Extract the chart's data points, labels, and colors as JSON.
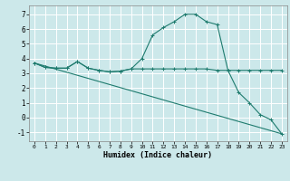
{
  "xlabel": "Humidex (Indice chaleur)",
  "bg_color": "#cce8ea",
  "line_color": "#1e7b6e",
  "grid_color": "#ffffff",
  "xlim": [
    -0.5,
    23.5
  ],
  "ylim": [
    -1.6,
    7.6
  ],
  "yticks": [
    -1,
    0,
    1,
    2,
    3,
    4,
    5,
    6,
    7
  ],
  "xticks": [
    0,
    1,
    2,
    3,
    4,
    5,
    6,
    7,
    8,
    9,
    10,
    11,
    12,
    13,
    14,
    15,
    16,
    17,
    18,
    19,
    20,
    21,
    22,
    23
  ],
  "series1_x": [
    0,
    1,
    2,
    3,
    4,
    5,
    6,
    7,
    8,
    9,
    10,
    11,
    12,
    13,
    14,
    15,
    16,
    17,
    18,
    19,
    20,
    21,
    22,
    23
  ],
  "series1_y": [
    3.7,
    3.4,
    3.35,
    3.35,
    3.8,
    3.35,
    3.2,
    3.1,
    3.15,
    3.3,
    4.0,
    5.6,
    6.1,
    6.5,
    7.0,
    7.0,
    6.5,
    6.3,
    3.2,
    1.7,
    1.0,
    0.2,
    -0.15,
    -1.1
  ],
  "series2_x": [
    0,
    1,
    2,
    3,
    4,
    5,
    6,
    7,
    8,
    9,
    10,
    11,
    12,
    13,
    14,
    15,
    16,
    17,
    18,
    19,
    20,
    21,
    22,
    23
  ],
  "series2_y": [
    3.7,
    3.4,
    3.35,
    3.35,
    3.8,
    3.35,
    3.2,
    3.1,
    3.15,
    3.3,
    3.3,
    3.3,
    3.3,
    3.3,
    3.3,
    3.3,
    3.3,
    3.2,
    3.2,
    3.2,
    3.2,
    3.2,
    3.2,
    3.2
  ],
  "series3_x": [
    0,
    23
  ],
  "series3_y": [
    3.7,
    -1.1
  ],
  "marker": "+"
}
